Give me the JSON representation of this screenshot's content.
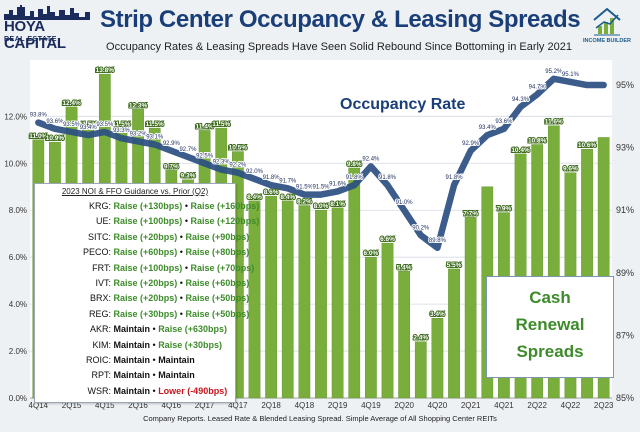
{
  "header": {
    "logo_left_line1": "HOYA CAPITAL",
    "logo_left_line2": "REAL ESTATE",
    "logo_right": "INCOME BUILDER",
    "title": "Strip Center Occupancy & Leasing Spreads",
    "subtitle": "Occupancy Rates & Leasing Spreads Have Seen Solid Rebound Since Bottoming in Early 2021"
  },
  "source": "Company Reports. Leased Rate & Blended Leasing Spread. Simple Average of All Shopping Center REITs",
  "occupancy_label": "Occupancy Rate",
  "cash_box": [
    "Cash",
    "Renewal",
    "Spreads"
  ],
  "guidance": {
    "title": "2023 NOI & FFO Guidance vs. Prior (Q2)",
    "rows": [
      {
        "ticker": "KRG:",
        "a": "Raise (+130bps)",
        "a_type": "raise",
        "b": "Raise (+160bps)",
        "b_type": "raise"
      },
      {
        "ticker": "UE:",
        "a": "Raise (+100bps)",
        "a_type": "raise",
        "b": "Raise (+120bps)",
        "b_type": "raise"
      },
      {
        "ticker": "SITC:",
        "a": "Raise (+20bps)",
        "a_type": "raise",
        "b": "Raise (+90bps)",
        "b_type": "raise"
      },
      {
        "ticker": "PECO:",
        "a": "Raise (+60bps)",
        "a_type": "raise",
        "b": "Raise (+80bps)",
        "b_type": "raise"
      },
      {
        "ticker": "FRT:",
        "a": "Raise (+100bps)",
        "a_type": "raise",
        "b": "Raise (+70bps)",
        "b_type": "raise"
      },
      {
        "ticker": "IVT:",
        "a": "Raise (+20bps)",
        "a_type": "raise",
        "b": "Raise (+60bps)",
        "b_type": "raise"
      },
      {
        "ticker": "BRX:",
        "a": "Raise (+20bps)",
        "a_type": "raise",
        "b": "Raise (+50bps)",
        "b_type": "raise"
      },
      {
        "ticker": "REG:",
        "a": "Raise (+30bps)",
        "a_type": "raise",
        "b": "Raise (+50bps)",
        "b_type": "raise"
      },
      {
        "ticker": "AKR:",
        "a": "Maintain",
        "a_type": "maintain",
        "b": "Raise (+630bps)",
        "b_type": "raise"
      },
      {
        "ticker": "KIM:",
        "a": "Maintain",
        "a_type": "maintain",
        "b": "Raise (+30bps)",
        "b_type": "raise"
      },
      {
        "ticker": "ROIC:",
        "a": "Maintain",
        "a_type": "maintain",
        "b": "Maintain",
        "b_type": "maintain"
      },
      {
        "ticker": "RPT:",
        "a": "Maintain",
        "a_type": "maintain",
        "b": "Maintain",
        "b_type": "maintain"
      },
      {
        "ticker": "WSR:",
        "a": "Maintain",
        "a_type": "maintain",
        "b": "Lower (-490bps)",
        "b_type": "lower"
      }
    ]
  },
  "colors": {
    "bar": "#7aae3c",
    "bar_edge": "#5e8f2a",
    "line": "#2b4f82",
    "title": "#1a3e78",
    "raise": "#3d8b2a",
    "lower": "#c8161d"
  },
  "chart_data": {
    "type": "bar",
    "title": "Strip Center Occupancy & Leasing Spreads",
    "categories": [
      "4Q14",
      "1Q15",
      "2Q15",
      "3Q15",
      "4Q15",
      "1Q16",
      "2Q16",
      "3Q16",
      "4Q16",
      "1Q17",
      "2Q17",
      "3Q17",
      "4Q17",
      "1Q18",
      "2Q18",
      "3Q18",
      "4Q18",
      "1Q19",
      "2Q19",
      "3Q19",
      "4Q19",
      "1Q20",
      "2Q20",
      "3Q20",
      "4Q20",
      "1Q21",
      "2Q21",
      "3Q21",
      "4Q21",
      "1Q22",
      "2Q22",
      "3Q22",
      "4Q22",
      "1Q23",
      "2Q23"
    ],
    "x_tick_labels": [
      "4Q14",
      "2Q15",
      "4Q15",
      "2Q16",
      "4Q16",
      "2Q17",
      "4Q17",
      "2Q18",
      "4Q18",
      "2Q19",
      "4Q19",
      "2Q20",
      "4Q20",
      "2Q21",
      "4Q21",
      "2Q22",
      "4Q22",
      "2Q23"
    ],
    "series": [
      {
        "name": "Cash Renewal Spreads",
        "type": "bar",
        "axis": "left",
        "values": [
          11.0,
          10.9,
          12.4,
          11.5,
          13.8,
          11.5,
          12.3,
          11.5,
          9.7,
          9.3,
          11.4,
          11.5,
          10.5,
          8.4,
          8.6,
          8.4,
          8.2,
          8.0,
          8.1,
          9.8,
          6.0,
          6.6,
          5.4,
          2.4,
          3.4,
          5.5,
          7.7,
          9.0,
          7.9,
          10.4,
          10.8,
          11.6,
          9.6,
          10.6,
          11.1
        ],
        "labels": [
          "11.0%",
          "10.9%",
          "12.4%",
          "11.5%",
          "13.8%",
          "11.5%",
          "12.3%",
          "11.5%",
          "9.7%",
          "9.3%",
          "11.4%",
          "11.5%",
          "10.5%",
          "8.4%",
          "8.6%",
          "8.4%",
          "8.2%",
          "8.0%",
          "8.1%",
          "9.8%",
          "6.0%",
          "6.6%",
          "5.4%",
          "2.4%",
          "3.4%",
          "5.5%",
          "7.7%",
          "",
          "7.9%",
          "10.4%",
          "10.8%",
          "11.6%",
          "9.6%",
          "10.6%",
          ""
        ]
      },
      {
        "name": "Occupancy Rate",
        "type": "line",
        "axis": "right",
        "values": [
          93.8,
          93.6,
          93.5,
          93.4,
          93.5,
          93.3,
          93.2,
          93.1,
          92.9,
          92.7,
          92.5,
          92.3,
          92.2,
          92.0,
          91.8,
          91.7,
          91.5,
          91.5,
          91.6,
          91.8,
          92.4,
          91.8,
          91.0,
          90.2,
          89.8,
          91.8,
          92.9,
          93.4,
          93.6,
          94.3,
          94.7,
          95.2,
          95.1,
          95.0,
          95.0
        ],
        "labels": [
          "93.8%",
          "93.6%",
          "93.5%",
          "93.4%",
          "93.5%",
          "93.3%",
          "93.2%",
          "93.1%",
          "92.9%",
          "92.7%",
          "92.5%",
          "92.3%",
          "92.2%",
          "92.0%",
          "91.8%",
          "91.7%",
          "91.5%",
          "91.5%",
          "91.6%",
          "91.8%",
          "92.4%",
          "91.8%",
          "91.0%",
          "90.2%",
          "89.8%",
          "91.8%",
          "92.9%",
          "93.4%",
          "93.6%",
          "94.3%",
          "94.7%",
          "95.2%",
          "95.1%",
          "",
          ""
        ]
      }
    ],
    "y_left": {
      "ylim": [
        0,
        14.4
      ],
      "ticks": [
        "0.0%",
        "2.0%",
        "4.0%",
        "6.0%",
        "8.0%",
        "10.0%",
        "12.0%"
      ],
      "tick_values": [
        0,
        2,
        4,
        6,
        8,
        10,
        12
      ]
    },
    "y_right": {
      "ylim": [
        85,
        95.8
      ],
      "ticks": [
        "85%",
        "87%",
        "89%",
        "91%",
        "93%",
        "95%"
      ],
      "tick_values": [
        85,
        87,
        89,
        91,
        93,
        95
      ]
    },
    "grid": true
  }
}
